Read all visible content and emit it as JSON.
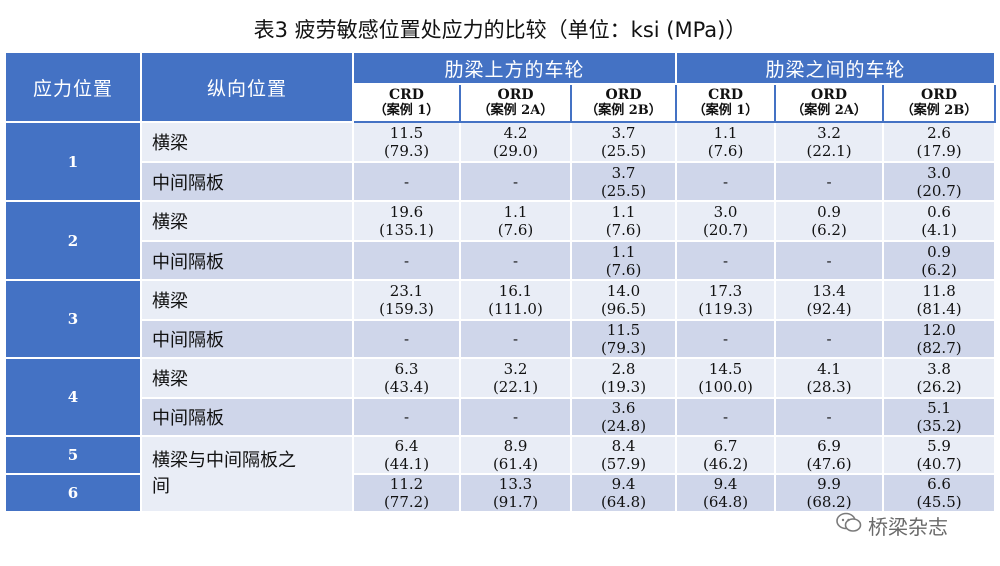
{
  "title": "表3 疲劳敏感位置处应力的比较（单位：ksi (MPa)）",
  "headers": {
    "stress_location": "应力位置",
    "longitudinal_location": "纵向位置",
    "group_above": "肋梁上方的车轮",
    "group_between": "肋梁之间的车轮",
    "cases": [
      {
        "name": "CRD",
        "case": "（案例 1）"
      },
      {
        "name": "ORD",
        "case": "（案例 2A）"
      },
      {
        "name": "ORD",
        "case": "（案例 2B）"
      },
      {
        "name": "CRD",
        "case": "（案例 1）"
      },
      {
        "name": "ORD",
        "case": "（案例 2A）"
      },
      {
        "name": "ORD",
        "case": "（案例 2B）"
      }
    ]
  },
  "rows": [
    {
      "pos": "1",
      "label": "横梁",
      "cells": [
        {
          "v": "11.5",
          "m": "(79.3)"
        },
        {
          "v": "4.2",
          "m": "(29.0)"
        },
        {
          "v": "3.7",
          "m": "(25.5)"
        },
        {
          "v": "1.1",
          "m": "(7.6)"
        },
        {
          "v": "3.2",
          "m": "(22.1)"
        },
        {
          "v": "2.6",
          "m": "(17.9)"
        }
      ]
    },
    {
      "pos": "",
      "label": "中间隔板",
      "cells": [
        {
          "v": "-",
          "m": ""
        },
        {
          "v": "-",
          "m": ""
        },
        {
          "v": "3.7",
          "m": "(25.5)"
        },
        {
          "v": "-",
          "m": ""
        },
        {
          "v": "-",
          "m": ""
        },
        {
          "v": "3.0",
          "m": "(20.7)"
        }
      ]
    },
    {
      "pos": "2",
      "label": "横梁",
      "cells": [
        {
          "v": "19.6",
          "m": "(135.1)"
        },
        {
          "v": "1.1",
          "m": "(7.6)"
        },
        {
          "v": "1.1",
          "m": "(7.6)"
        },
        {
          "v": "3.0",
          "m": "(20.7)"
        },
        {
          "v": "0.9",
          "m": "(6.2)"
        },
        {
          "v": "0.6",
          "m": "(4.1)"
        }
      ]
    },
    {
      "pos": "",
      "label": "中间隔板",
      "cells": [
        {
          "v": "-",
          "m": ""
        },
        {
          "v": "-",
          "m": ""
        },
        {
          "v": "1.1",
          "m": "(7.6)"
        },
        {
          "v": "-",
          "m": ""
        },
        {
          "v": "-",
          "m": ""
        },
        {
          "v": "0.9",
          "m": "(6.2)"
        }
      ]
    },
    {
      "pos": "3",
      "label": "横梁",
      "cells": [
        {
          "v": "23.1",
          "m": "(159.3)"
        },
        {
          "v": "16.1",
          "m": "(111.0)"
        },
        {
          "v": "14.0",
          "m": "(96.5)"
        },
        {
          "v": "17.3",
          "m": "(119.3)"
        },
        {
          "v": "13.4",
          "m": "(92.4)"
        },
        {
          "v": "11.8",
          "m": "(81.4)"
        }
      ]
    },
    {
      "pos": "",
      "label": "中间隔板",
      "cells": [
        {
          "v": "-",
          "m": ""
        },
        {
          "v": "-",
          "m": ""
        },
        {
          "v": "11.5",
          "m": "(79.3)"
        },
        {
          "v": "-",
          "m": ""
        },
        {
          "v": "-",
          "m": ""
        },
        {
          "v": "12.0",
          "m": "(82.7)"
        }
      ]
    },
    {
      "pos": "4",
      "label": "横梁",
      "cells": [
        {
          "v": "6.3",
          "m": "(43.4)"
        },
        {
          "v": "3.2",
          "m": "(22.1)"
        },
        {
          "v": "2.8",
          "m": "(19.3)"
        },
        {
          "v": "14.5",
          "m": "(100.0)"
        },
        {
          "v": "4.1",
          "m": "(28.3)"
        },
        {
          "v": "3.8",
          "m": "(26.2)"
        }
      ]
    },
    {
      "pos": "",
      "label": "中间隔板",
      "cells": [
        {
          "v": "-",
          "m": ""
        },
        {
          "v": "-",
          "m": ""
        },
        {
          "v": "3.6",
          "m": "(24.8)"
        },
        {
          "v": "-",
          "m": ""
        },
        {
          "v": "-",
          "m": ""
        },
        {
          "v": "5.1",
          "m": "(35.2)"
        }
      ]
    },
    {
      "pos": "5",
      "label": "横梁与中间隔板之间",
      "cells": [
        {
          "v": "6.4",
          "m": "(44.1)"
        },
        {
          "v": "8.9",
          "m": "(61.4)"
        },
        {
          "v": "8.4",
          "m": "(57.9)"
        },
        {
          "v": "6.7",
          "m": "(46.2)"
        },
        {
          "v": "6.9",
          "m": "(47.6)"
        },
        {
          "v": "5.9",
          "m": "(40.7)"
        }
      ]
    },
    {
      "pos": "6",
      "label": "",
      "cells": [
        {
          "v": "11.2",
          "m": "(77.2)"
        },
        {
          "v": "13.3",
          "m": "(91.7)"
        },
        {
          "v": "9.4",
          "m": "(64.8)"
        },
        {
          "v": "9.4",
          "m": "(64.8)"
        },
        {
          "v": "9.9",
          "m": "(68.2)"
        },
        {
          "v": "6.6",
          "m": "(45.5)"
        }
      ]
    }
  ],
  "watermark": {
    "text": "桥梁杂志",
    "icon": "wechat-icon"
  }
}
